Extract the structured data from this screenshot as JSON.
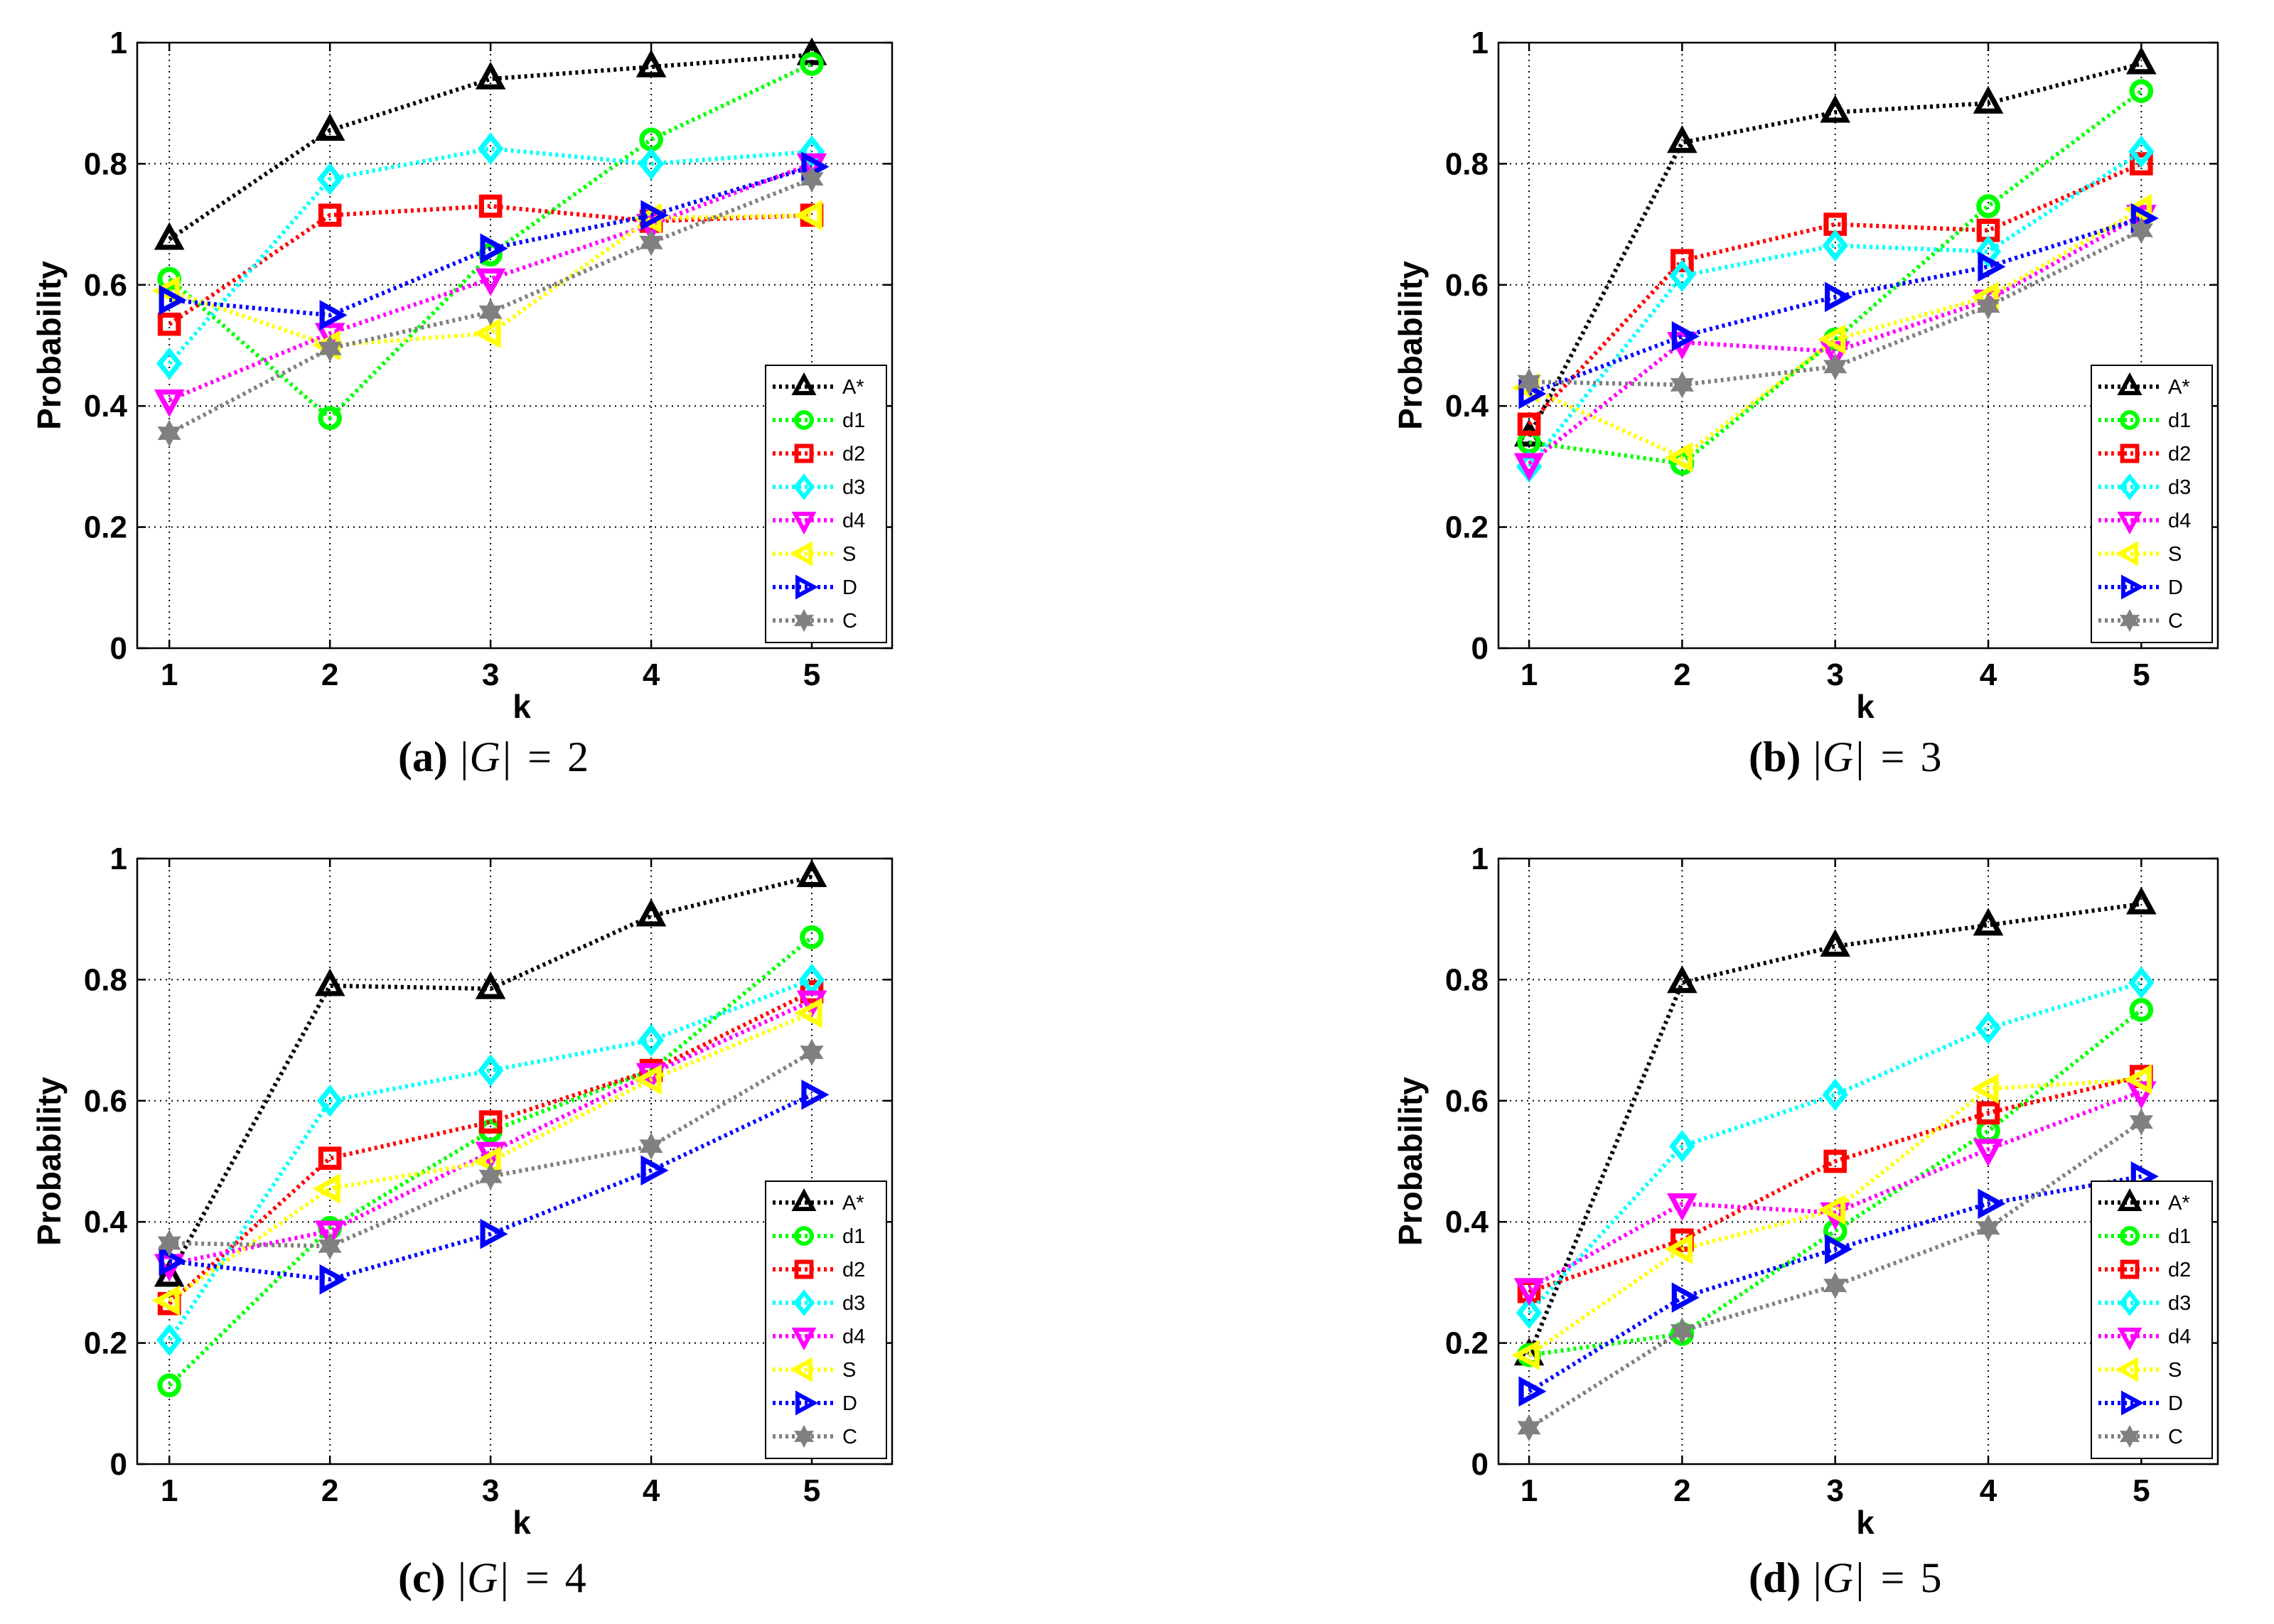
{
  "figure": {
    "series_colors": {
      "A*": "#000000",
      "d1": "#00ff00",
      "d2": "#ff0000",
      "d3": "#00ffff",
      "d4": "#ff00ff",
      "S": "#ffff00",
      "D": "#0000ff",
      "C": "#808080"
    },
    "series_markers": {
      "A*": "triangle-up",
      "d1": "circle",
      "d2": "square",
      "d3": "diamond",
      "d4": "triangle-down",
      "S": "triangle-left",
      "D": "triangle-right",
      "C": "hexagram"
    }
  },
  "chart_data": [
    {
      "type": "line",
      "caption": {
        "label": "(a)",
        "expr": "|G|",
        "eq": "=",
        "value": "2"
      },
      "xlabel": "k",
      "ylabel": "Probability",
      "x": [
        1,
        2,
        3,
        4,
        5
      ],
      "xlim": [
        0.8,
        5.5
      ],
      "ylim": [
        0,
        1
      ],
      "xticks": [
        "1",
        "2",
        "3",
        "4",
        "5"
      ],
      "yticks": [
        "0",
        "0.2",
        "0.4",
        "0.6",
        "0.8",
        "1"
      ],
      "grid": true,
      "legend_position": "lower-right",
      "series": [
        {
          "name": "A*",
          "values": [
            0.675,
            0.855,
            0.94,
            0.96,
            0.98
          ]
        },
        {
          "name": "d1",
          "values": [
            0.61,
            0.38,
            0.65,
            0.84,
            0.965
          ]
        },
        {
          "name": "d2",
          "values": [
            0.535,
            0.715,
            0.73,
            0.705,
            0.715
          ]
        },
        {
          "name": "d3",
          "values": [
            0.47,
            0.775,
            0.825,
            0.8,
            0.82
          ]
        },
        {
          "name": "d4",
          "values": [
            0.41,
            0.52,
            0.61,
            0.7,
            0.8
          ]
        },
        {
          "name": "S",
          "values": [
            0.59,
            0.5,
            0.52,
            0.71,
            0.715
          ]
        },
        {
          "name": "D",
          "values": [
            0.575,
            0.55,
            0.66,
            0.715,
            0.795
          ]
        },
        {
          "name": "C",
          "values": [
            0.355,
            0.495,
            0.555,
            0.67,
            0.775
          ]
        }
      ]
    },
    {
      "type": "line",
      "caption": {
        "label": "(b)",
        "expr": "|G|",
        "eq": "=",
        "value": "3"
      },
      "xlabel": "k",
      "ylabel": "Probability",
      "x": [
        1,
        2,
        3,
        4,
        5
      ],
      "xlim": [
        0.8,
        5.5
      ],
      "ylim": [
        0,
        1
      ],
      "xticks": [
        "1",
        "2",
        "3",
        "4",
        "5"
      ],
      "yticks": [
        "0",
        "0.2",
        "0.4",
        "0.6",
        "0.8",
        "1"
      ],
      "grid": true,
      "legend_position": "lower-right",
      "series": [
        {
          "name": "A*",
          "values": [
            0.35,
            0.835,
            0.885,
            0.9,
            0.965
          ]
        },
        {
          "name": "d1",
          "values": [
            0.34,
            0.305,
            0.51,
            0.73,
            0.92
          ]
        },
        {
          "name": "d2",
          "values": [
            0.37,
            0.64,
            0.7,
            0.69,
            0.8
          ]
        },
        {
          "name": "d3",
          "values": [
            0.3,
            0.615,
            0.665,
            0.655,
            0.82
          ]
        },
        {
          "name": "d4",
          "values": [
            0.305,
            0.505,
            0.49,
            0.575,
            0.715
          ]
        },
        {
          "name": "S",
          "values": [
            0.43,
            0.315,
            0.51,
            0.58,
            0.725
          ]
        },
        {
          "name": "D",
          "values": [
            0.42,
            0.515,
            0.58,
            0.63,
            0.71
          ]
        },
        {
          "name": "C",
          "values": [
            0.44,
            0.435,
            0.465,
            0.565,
            0.69
          ]
        }
      ]
    },
    {
      "type": "line",
      "caption": {
        "label": "(c)",
        "expr": "|G|",
        "eq": "=",
        "value": "4"
      },
      "xlabel": "k",
      "ylabel": "Probability",
      "x": [
        1,
        2,
        3,
        4,
        5
      ],
      "xlim": [
        0.8,
        5.5
      ],
      "ylim": [
        0,
        1
      ],
      "xticks": [
        "1",
        "2",
        "3",
        "4",
        "5"
      ],
      "yticks": [
        "0",
        "0.2",
        "0.4",
        "0.6",
        "0.8",
        "1"
      ],
      "grid": true,
      "legend_position": "lower-right",
      "series": [
        {
          "name": "A*",
          "values": [
            0.31,
            0.79,
            0.785,
            0.905,
            0.97
          ]
        },
        {
          "name": "d1",
          "values": [
            0.13,
            0.39,
            0.55,
            0.65,
            0.87
          ]
        },
        {
          "name": "d2",
          "values": [
            0.265,
            0.505,
            0.565,
            0.65,
            0.78
          ]
        },
        {
          "name": "d3",
          "values": [
            0.205,
            0.6,
            0.65,
            0.7,
            0.8
          ]
        },
        {
          "name": "d4",
          "values": [
            0.33,
            0.385,
            0.515,
            0.645,
            0.765
          ]
        },
        {
          "name": "S",
          "values": [
            0.27,
            0.455,
            0.5,
            0.635,
            0.745
          ]
        },
        {
          "name": "D",
          "values": [
            0.335,
            0.305,
            0.38,
            0.485,
            0.61
          ]
        },
        {
          "name": "C",
          "values": [
            0.365,
            0.36,
            0.475,
            0.525,
            0.68
          ]
        }
      ]
    },
    {
      "type": "line",
      "caption": {
        "label": "(d)",
        "expr": "|G|",
        "eq": "=",
        "value": "5"
      },
      "xlabel": "k",
      "ylabel": "Probability",
      "x": [
        1,
        2,
        3,
        4,
        5
      ],
      "xlim": [
        0.8,
        5.5
      ],
      "ylim": [
        0,
        1
      ],
      "xticks": [
        "1",
        "2",
        "3",
        "4",
        "5"
      ],
      "yticks": [
        "0",
        "0.2",
        "0.4",
        "0.6",
        "0.8",
        "1"
      ],
      "grid": true,
      "legend_position": "lower-right",
      "series": [
        {
          "name": "A*",
          "values": [
            0.18,
            0.795,
            0.855,
            0.89,
            0.925
          ]
        },
        {
          "name": "d1",
          "values": [
            0.18,
            0.215,
            0.385,
            0.55,
            0.75
          ]
        },
        {
          "name": "d2",
          "values": [
            0.285,
            0.37,
            0.5,
            0.58,
            0.64
          ]
        },
        {
          "name": "d3",
          "values": [
            0.25,
            0.525,
            0.61,
            0.72,
            0.795
          ]
        },
        {
          "name": "d4",
          "values": [
            0.29,
            0.43,
            0.415,
            0.52,
            0.615
          ]
        },
        {
          "name": "S",
          "values": [
            0.18,
            0.355,
            0.42,
            0.62,
            0.635
          ]
        },
        {
          "name": "D",
          "values": [
            0.12,
            0.275,
            0.355,
            0.43,
            0.475
          ]
        },
        {
          "name": "C",
          "values": [
            0.06,
            0.22,
            0.295,
            0.39,
            0.565
          ]
        }
      ]
    }
  ]
}
